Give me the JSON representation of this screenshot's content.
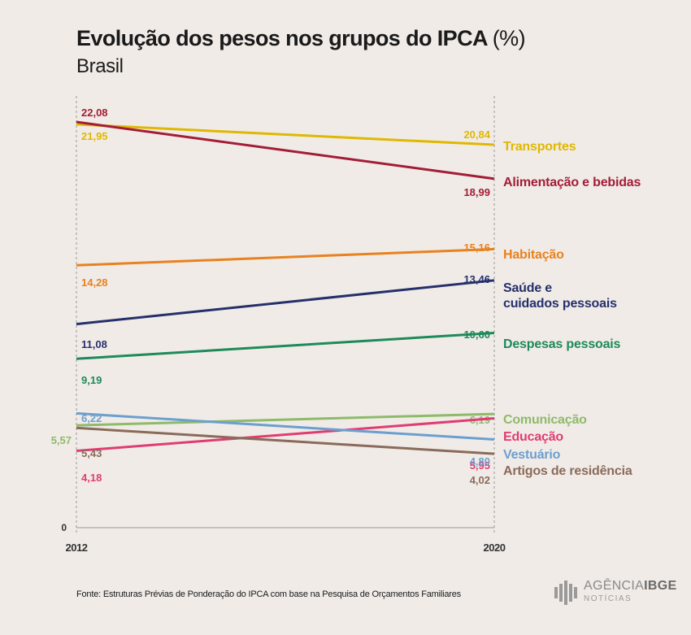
{
  "title": "Evolução dos pesos nos grupos do IPCA",
  "title_unit": "(%)",
  "subtitle": "Brasil",
  "source": "Fonte: Estruturas Prévias de Ponderação do IPCA com base na Pesquisa de Orçamentos Familiares",
  "logo": {
    "brand": "AGÊNCIA",
    "brand_bold": "IBGE",
    "sub": "NOTÍCIAS"
  },
  "chart_data": {
    "type": "line",
    "x": [
      "2012",
      "2020"
    ],
    "zero_label": "0",
    "ylim": [
      0,
      22.08
    ],
    "series": [
      {
        "name": "Transportes",
        "values": [
          21.95,
          20.84
        ],
        "labels": [
          "21,95",
          "20,84"
        ],
        "color": "#e0b800"
      },
      {
        "name": "Alimentação e bebidas",
        "values": [
          22.08,
          18.99
        ],
        "labels": [
          "22,08",
          "18,99"
        ],
        "color": "#a31d36"
      },
      {
        "name": "Habitação",
        "values": [
          14.28,
          15.16
        ],
        "labels": [
          "14,28",
          "15,16"
        ],
        "color": "#e8821e"
      },
      {
        "name": "Saúde e cuidados pessoais",
        "name_lines": [
          "Saúde e",
          "cuidados pessoais"
        ],
        "values": [
          11.08,
          13.46
        ],
        "labels": [
          "11,08",
          "13,46"
        ],
        "color": "#25306b"
      },
      {
        "name": "Despesas pessoais",
        "values": [
          9.19,
          10.6
        ],
        "labels": [
          "9,19",
          "10,60"
        ],
        "color": "#1e8a5a"
      },
      {
        "name": "Comunicação",
        "values": [
          5.57,
          6.19
        ],
        "labels": [
          "5,57",
          "6,19"
        ],
        "color": "#8dbb6a"
      },
      {
        "name": "Educação",
        "values": [
          4.18,
          5.95
        ],
        "labels": [
          "4,18",
          "5,95"
        ],
        "color": "#e03c73"
      },
      {
        "name": "Vestuário",
        "values": [
          6.22,
          4.8
        ],
        "labels": [
          "6,22",
          "4,80"
        ],
        "color": "#6c9fcf"
      },
      {
        "name": "Artigos de residência",
        "values": [
          5.43,
          4.02
        ],
        "labels": [
          "5,43",
          "4,02"
        ],
        "color": "#8a6b5a"
      }
    ]
  }
}
